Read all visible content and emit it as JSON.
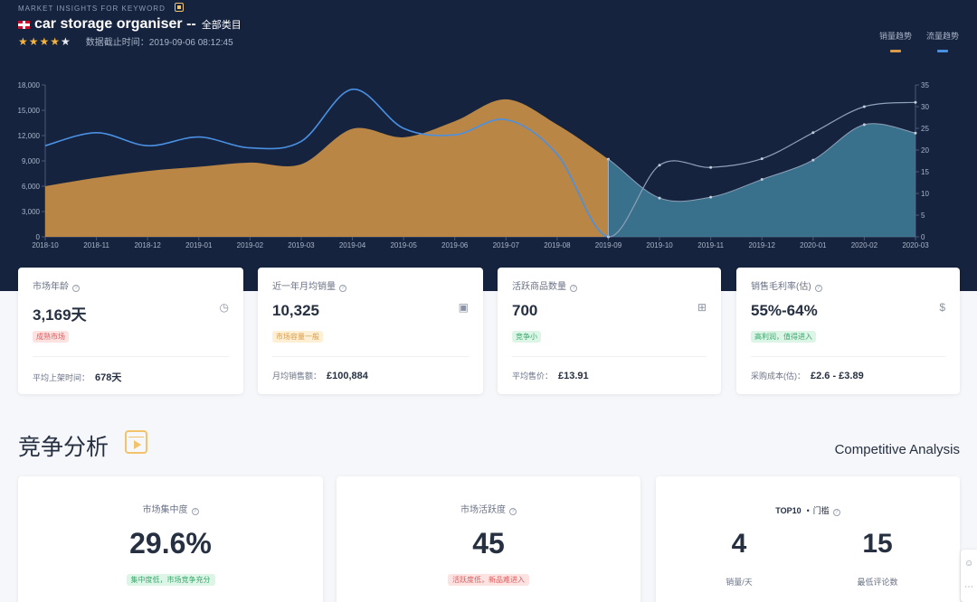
{
  "header": {
    "eyebrow": "MARKET INSIGHTS FOR KEYWORD",
    "title": "car storage organiser --",
    "category": "全部类目",
    "stars": "★★★★",
    "stars_empty": "★",
    "timestamp": "数据截止时间：2019-09-06 08:12:45"
  },
  "legend": {
    "sales": {
      "label": "销量趋势",
      "color": "#d99a4a"
    },
    "traffic": {
      "label": "流量趋势",
      "color": "#4a90e2"
    }
  },
  "chart_data": {
    "type": "area",
    "x": [
      "2018-10",
      "2018-11",
      "2018-12",
      "2019-01",
      "2019-02",
      "2019-03",
      "2019-04",
      "2019-05",
      "2019-06",
      "2019-07",
      "2019-08",
      "2019-09",
      "2019-10",
      "2019-11",
      "2019-12",
      "2020-01",
      "2020-02",
      "2020-03"
    ],
    "left_axis": {
      "ylim": [
        0,
        18000
      ],
      "ticks": [
        "0",
        "3,000",
        "6,000",
        "9,000",
        "12,000",
        "15,000",
        "18,000"
      ]
    },
    "right_axis": {
      "ylim": [
        0,
        35
      ],
      "ticks": [
        "0",
        "5",
        "10",
        "15",
        "20",
        "25",
        "30",
        "35"
      ]
    },
    "split_at": "2019-09",
    "series": [
      {
        "name": "销量趋势",
        "axis": "left",
        "values": [
          6000,
          7000,
          7800,
          8300,
          8800,
          8600,
          12800,
          11800,
          13700,
          16300,
          13300,
          9200,
          4600,
          4700,
          6800,
          9100,
          13300,
          12300
        ]
      },
      {
        "name": "流量趋势",
        "axis": "right",
        "values": [
          21,
          24,
          21,
          23,
          20.5,
          22,
          34,
          25,
          23.5,
          27,
          19,
          0,
          16.5,
          16,
          18,
          24,
          30,
          31
        ]
      }
    ]
  },
  "stats": [
    {
      "label": "市场年龄",
      "icon": "◷",
      "value": "3,169天",
      "badge": "成熟市场",
      "foot_label": "平均上架时间：",
      "foot_value": "678天"
    },
    {
      "label": "近一年月均销量",
      "icon": "▣",
      "value": "10,325",
      "badge": "市场容量一般",
      "foot_label": "月均销售额：",
      "foot_value": "£100,884"
    },
    {
      "label": "活跃商品数量",
      "icon": "⊞",
      "value": "700",
      "badge": "竞争小",
      "foot_label": "平均售价：",
      "foot_value": "£13.91"
    },
    {
      "label": "销售毛利率(估)",
      "icon": "$",
      "value": "55%-64%",
      "badge": "高利润，值得进入",
      "foot_label": "采购成本(估)：",
      "foot_value": "£2.6 - £3.89"
    }
  ],
  "section": {
    "title": "竞争分析",
    "title_en": "Competitive Analysis"
  },
  "competition": {
    "concentration": {
      "label": "市场集中度",
      "value": "29.6%",
      "badge": "集中度低，市场竞争充分"
    },
    "activity": {
      "label": "市场活跃度",
      "value": "45",
      "badge": "活跃度低，新品难进入"
    },
    "top10": {
      "prefix": "TOP10",
      "label": "门槛",
      "sales_value": "4",
      "sales_label": "销量/天",
      "reviews_value": "15",
      "reviews_label": "最低评论数"
    }
  },
  "colors": {
    "bg_dark": "#15233f",
    "badge_red": "#fde2e2",
    "badge_orange": "#fdf0d5",
    "badge_green": "#dcf5e6"
  }
}
